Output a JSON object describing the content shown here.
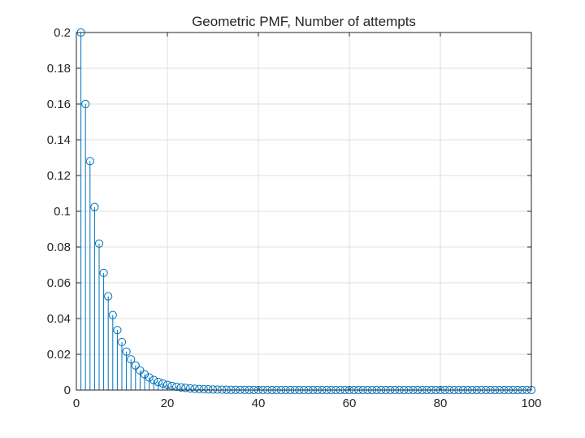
{
  "chart_data": {
    "type": "stem",
    "title": "Geometric PMF, Number of attempts",
    "xlabel": "",
    "ylabel": "",
    "xlim": [
      0,
      100
    ],
    "ylim": [
      0,
      0.2
    ],
    "grid": true,
    "x_ticks": [
      "0",
      "20",
      "40",
      "60",
      "80",
      "100"
    ],
    "y_ticks": [
      "0",
      "0.02",
      "0.04",
      "0.06",
      "0.08",
      "0.1",
      "0.12",
      "0.14",
      "0.16",
      "0.18",
      "0.2"
    ],
    "series": [
      {
        "distribution": "geometric",
        "p": 0.2,
        "x_start": 1,
        "x_end": 100,
        "color": "#0072BD"
      }
    ]
  }
}
